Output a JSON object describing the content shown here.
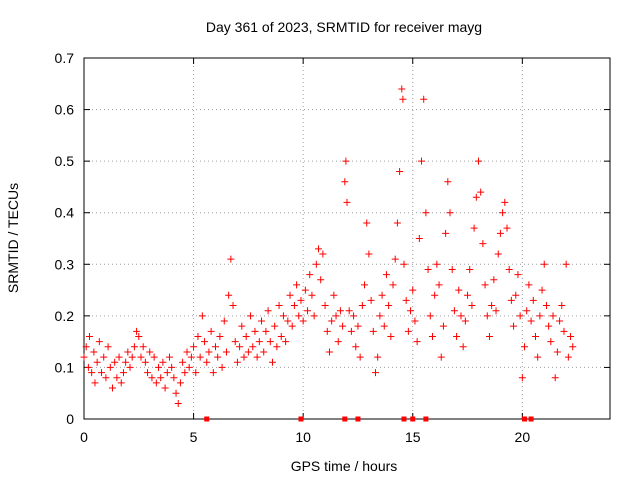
{
  "chart_data": {
    "type": "scatter",
    "title": "Day 361 of 2023, SRMTID for receiver mayg",
    "xlabel": "GPS time / hours",
    "ylabel": "SRMTID / TECUs",
    "xlim": [
      0,
      24
    ],
    "ylim": [
      0,
      0.7
    ],
    "xticks": [
      0,
      5,
      10,
      15,
      20
    ],
    "yticks": [
      0,
      0.1,
      0.2,
      0.3,
      0.4,
      0.5,
      0.6,
      0.7
    ],
    "grid": true,
    "marker": "+",
    "color": "#ff0000",
    "series": [
      {
        "name": "SRMTID",
        "points": [
          [
            0.0,
            0.12
          ],
          [
            0.1,
            0.14
          ],
          [
            0.2,
            0.1
          ],
          [
            0.25,
            0.16
          ],
          [
            0.35,
            0.09
          ],
          [
            0.45,
            0.13
          ],
          [
            0.5,
            0.07
          ],
          [
            0.6,
            0.11
          ],
          [
            0.7,
            0.15
          ],
          [
            0.8,
            0.09
          ],
          [
            0.9,
            0.12
          ],
          [
            1.0,
            0.08
          ],
          [
            1.1,
            0.14
          ],
          [
            1.2,
            0.1
          ],
          [
            1.3,
            0.06
          ],
          [
            1.4,
            0.11
          ],
          [
            1.5,
            0.08
          ],
          [
            1.6,
            0.12
          ],
          [
            1.7,
            0.07
          ],
          [
            1.8,
            0.09
          ],
          [
            1.9,
            0.11
          ],
          [
            2.0,
            0.13
          ],
          [
            2.1,
            0.1
          ],
          [
            2.2,
            0.12
          ],
          [
            2.3,
            0.14
          ],
          [
            2.4,
            0.17
          ],
          [
            2.5,
            0.16
          ],
          [
            2.6,
            0.12
          ],
          [
            2.7,
            0.14
          ],
          [
            2.8,
            0.11
          ],
          [
            2.9,
            0.09
          ],
          [
            3.0,
            0.13
          ],
          [
            3.1,
            0.08
          ],
          [
            3.2,
            0.12
          ],
          [
            3.3,
            0.07
          ],
          [
            3.4,
            0.1
          ],
          [
            3.5,
            0.08
          ],
          [
            3.6,
            0.11
          ],
          [
            3.7,
            0.06
          ],
          [
            3.8,
            0.09
          ],
          [
            3.9,
            0.12
          ],
          [
            4.0,
            0.1
          ],
          [
            4.1,
            0.08
          ],
          [
            4.2,
            0.05
          ],
          [
            4.3,
            0.03
          ],
          [
            4.4,
            0.07
          ],
          [
            4.5,
            0.11
          ],
          [
            4.6,
            0.09
          ],
          [
            4.7,
            0.13
          ],
          [
            4.8,
            0.1
          ],
          [
            4.9,
            0.12
          ],
          [
            5.0,
            0.14
          ],
          [
            5.1,
            0.09
          ],
          [
            5.2,
            0.16
          ],
          [
            5.3,
            0.12
          ],
          [
            5.4,
            0.2
          ],
          [
            5.5,
            0.15
          ],
          [
            5.6,
            0.11
          ],
          [
            5.7,
            0.13
          ],
          [
            5.8,
            0.17
          ],
          [
            5.9,
            0.09
          ],
          [
            6.0,
            0.14
          ],
          [
            6.1,
            0.12
          ],
          [
            6.2,
            0.16
          ],
          [
            6.3,
            0.1
          ],
          [
            6.4,
            0.19
          ],
          [
            6.5,
            0.13
          ],
          [
            6.6,
            0.24
          ],
          [
            6.7,
            0.31
          ],
          [
            6.8,
            0.22
          ],
          [
            6.9,
            0.15
          ],
          [
            7.0,
            0.11
          ],
          [
            7.1,
            0.14
          ],
          [
            7.2,
            0.18
          ],
          [
            7.3,
            0.12
          ],
          [
            7.4,
            0.16
          ],
          [
            7.5,
            0.13
          ],
          [
            7.6,
            0.2
          ],
          [
            7.7,
            0.14
          ],
          [
            7.8,
            0.17
          ],
          [
            7.9,
            0.12
          ],
          [
            8.0,
            0.15
          ],
          [
            8.1,
            0.19
          ],
          [
            8.2,
            0.13
          ],
          [
            8.3,
            0.17
          ],
          [
            8.4,
            0.21
          ],
          [
            8.5,
            0.15
          ],
          [
            8.6,
            0.11
          ],
          [
            8.7,
            0.18
          ],
          [
            8.8,
            0.14
          ],
          [
            8.9,
            0.22
          ],
          [
            9.0,
            0.16
          ],
          [
            9.1,
            0.2
          ],
          [
            9.2,
            0.15
          ],
          [
            9.3,
            0.19
          ],
          [
            9.4,
            0.24
          ],
          [
            9.5,
            0.18
          ],
          [
            9.6,
            0.22
          ],
          [
            9.7,
            0.26
          ],
          [
            9.8,
            0.2
          ],
          [
            9.9,
            0.23
          ],
          [
            10.0,
            0.19
          ],
          [
            10.1,
            0.25
          ],
          [
            10.2,
            0.21
          ],
          [
            10.3,
            0.28
          ],
          [
            10.4,
            0.24
          ],
          [
            10.5,
            0.2
          ],
          [
            10.6,
            0.3
          ],
          [
            10.7,
            0.33
          ],
          [
            10.8,
            0.27
          ],
          [
            10.9,
            0.32
          ],
          [
            11.0,
            0.22
          ],
          [
            11.1,
            0.17
          ],
          [
            11.2,
            0.13
          ],
          [
            11.3,
            0.19
          ],
          [
            11.4,
            0.24
          ],
          [
            11.5,
            0.2
          ],
          [
            11.6,
            0.15
          ],
          [
            11.7,
            0.21
          ],
          [
            11.8,
            0.18
          ],
          [
            11.9,
            0.46
          ],
          [
            11.95,
            0.5
          ],
          [
            12.0,
            0.42
          ],
          [
            12.1,
            0.21
          ],
          [
            12.2,
            0.17
          ],
          [
            12.3,
            0.2
          ],
          [
            12.4,
            0.14
          ],
          [
            12.5,
            0.18
          ],
          [
            12.6,
            0.12
          ],
          [
            12.7,
            0.22
          ],
          [
            12.8,
            0.26
          ],
          [
            12.9,
            0.38
          ],
          [
            13.0,
            0.32
          ],
          [
            13.1,
            0.23
          ],
          [
            13.2,
            0.17
          ],
          [
            13.3,
            0.09
          ],
          [
            13.4,
            0.12
          ],
          [
            13.5,
            0.2
          ],
          [
            13.6,
            0.24
          ],
          [
            13.7,
            0.18
          ],
          [
            13.8,
            0.28
          ],
          [
            13.9,
            0.22
          ],
          [
            14.0,
            0.16
          ],
          [
            14.1,
            0.26
          ],
          [
            14.2,
            0.31
          ],
          [
            14.3,
            0.38
          ],
          [
            14.4,
            0.48
          ],
          [
            14.5,
            0.64
          ],
          [
            14.55,
            0.62
          ],
          [
            14.6,
            0.3
          ],
          [
            14.7,
            0.23
          ],
          [
            14.8,
            0.17
          ],
          [
            14.9,
            0.21
          ],
          [
            15.0,
            0.25
          ],
          [
            15.1,
            0.19
          ],
          [
            15.2,
            0.15
          ],
          [
            15.3,
            0.35
          ],
          [
            15.4,
            0.5
          ],
          [
            15.5,
            0.62
          ],
          [
            15.6,
            0.4
          ],
          [
            15.7,
            0.29
          ],
          [
            15.8,
            0.2
          ],
          [
            15.9,
            0.16
          ],
          [
            16.0,
            0.24
          ],
          [
            16.1,
            0.3
          ],
          [
            16.2,
            0.26
          ],
          [
            16.3,
            0.12
          ],
          [
            16.4,
            0.18
          ],
          [
            16.5,
            0.36
          ],
          [
            16.6,
            0.46
          ],
          [
            16.7,
            0.4
          ],
          [
            16.8,
            0.29
          ],
          [
            16.9,
            0.21
          ],
          [
            17.0,
            0.16
          ],
          [
            17.1,
            0.25
          ],
          [
            17.2,
            0.2
          ],
          [
            17.3,
            0.14
          ],
          [
            17.4,
            0.19
          ],
          [
            17.5,
            0.24
          ],
          [
            17.6,
            0.29
          ],
          [
            17.7,
            0.22
          ],
          [
            17.8,
            0.37
          ],
          [
            17.9,
            0.43
          ],
          [
            18.0,
            0.5
          ],
          [
            18.1,
            0.44
          ],
          [
            18.2,
            0.34
          ],
          [
            18.3,
            0.26
          ],
          [
            18.4,
            0.2
          ],
          [
            18.5,
            0.16
          ],
          [
            18.6,
            0.22
          ],
          [
            18.7,
            0.27
          ],
          [
            18.8,
            0.21
          ],
          [
            18.9,
            0.32
          ],
          [
            19.0,
            0.36
          ],
          [
            19.1,
            0.4
          ],
          [
            19.2,
            0.42
          ],
          [
            19.3,
            0.37
          ],
          [
            19.4,
            0.29
          ],
          [
            19.5,
            0.23
          ],
          [
            19.6,
            0.18
          ],
          [
            19.7,
            0.24
          ],
          [
            19.8,
            0.28
          ],
          [
            19.9,
            0.2
          ],
          [
            20.0,
            0.08
          ],
          [
            20.1,
            0.14
          ],
          [
            20.2,
            0.21
          ],
          [
            20.3,
            0.26
          ],
          [
            20.4,
            0.19
          ],
          [
            20.5,
            0.23
          ],
          [
            20.6,
            0.16
          ],
          [
            20.7,
            0.12
          ],
          [
            20.8,
            0.2
          ],
          [
            20.9,
            0.25
          ],
          [
            21.0,
            0.3
          ],
          [
            21.1,
            0.22
          ],
          [
            21.2,
            0.18
          ],
          [
            21.3,
            0.15
          ],
          [
            21.4,
            0.2
          ],
          [
            21.5,
            0.08
          ],
          [
            21.6,
            0.13
          ],
          [
            21.7,
            0.19
          ],
          [
            21.8,
            0.22
          ],
          [
            21.9,
            0.17
          ],
          [
            22.0,
            0.3
          ],
          [
            22.1,
            0.12
          ],
          [
            22.2,
            0.16
          ],
          [
            22.3,
            0.14
          ]
        ]
      }
    ],
    "zero_markers_x": [
      5.6,
      9.9,
      11.9,
      12.5,
      14.6,
      15.0,
      15.6,
      20.1,
      20.4
    ]
  }
}
